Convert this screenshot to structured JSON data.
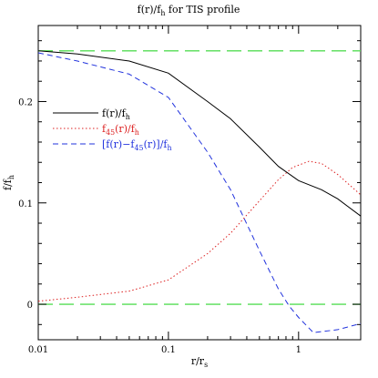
{
  "chart_data": {
    "type": "line",
    "title": "f(r)/f_h for TIS profile",
    "xlabel": "r/r_s",
    "ylabel": "f/f_h",
    "xscale": "log",
    "xlim": [
      0.01,
      3
    ],
    "ylim": [
      -0.035,
      0.275
    ],
    "x_ticks": [
      {
        "value": 0.01,
        "label": "0.01"
      },
      {
        "value": 0.1,
        "label": "0.1"
      },
      {
        "value": 1,
        "label": "1"
      }
    ],
    "y_ticks": [
      {
        "value": 0,
        "label": "0"
      },
      {
        "value": 0.1,
        "label": "0.1"
      },
      {
        "value": 0.2,
        "label": "0.2"
      }
    ],
    "grid": false,
    "legend_position": "upper-left",
    "reference_lines": [
      {
        "y": 0.25,
        "color": "#55dd55",
        "style": "long-dash"
      },
      {
        "y": 0,
        "color": "#55dd55",
        "style": "long-dash"
      }
    ],
    "series": [
      {
        "name": "f(r)/f_h",
        "color": "#000000",
        "style": "solid",
        "x": [
          0.01,
          0.02,
          0.05,
          0.1,
          0.2,
          0.3,
          0.5,
          0.7,
          1.0,
          1.5,
          2.0,
          3.0
        ],
        "y": [
          0.25,
          0.247,
          0.24,
          0.228,
          0.2,
          0.183,
          0.155,
          0.136,
          0.122,
          0.113,
          0.104,
          0.087
        ]
      },
      {
        "name": "f_45(r)/f_h",
        "color": "#dd2222",
        "style": "dotted",
        "x": [
          0.01,
          0.02,
          0.05,
          0.1,
          0.2,
          0.3,
          0.5,
          0.7,
          0.9,
          1.2,
          1.5,
          2.0,
          3.0
        ],
        "y": [
          0.003,
          0.007,
          0.013,
          0.024,
          0.05,
          0.07,
          0.102,
          0.123,
          0.135,
          0.141,
          0.139,
          0.128,
          0.108
        ]
      },
      {
        "name": "[f(r)−f_45(r)]/f_h",
        "color": "#2233dd",
        "style": "dashed",
        "x": [
          0.01,
          0.02,
          0.05,
          0.1,
          0.2,
          0.3,
          0.5,
          0.7,
          0.85,
          1.0,
          1.3,
          2.0,
          3.0
        ],
        "y": [
          0.248,
          0.24,
          0.227,
          0.204,
          0.15,
          0.113,
          0.053,
          0.015,
          -0.002,
          -0.013,
          -0.028,
          -0.025,
          -0.019
        ]
      }
    ]
  }
}
